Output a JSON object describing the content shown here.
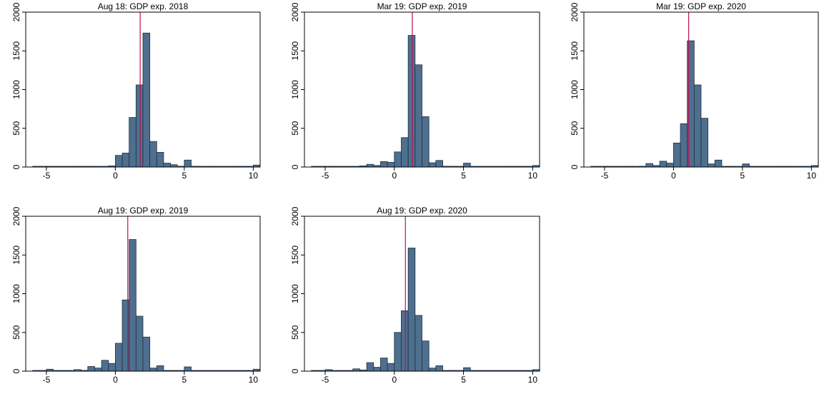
{
  "chart_data": [
    {
      "type": "bar",
      "title": "Aug 18: GDP exp. 2018",
      "xlim": [
        -6.5,
        10.5
      ],
      "ylim": [
        0,
        2000
      ],
      "xticks": [
        "-5",
        "0",
        "5",
        "10"
      ],
      "yticks": [
        "0",
        "500",
        "1000",
        "1500",
        "2000"
      ],
      "bin_width": 0.5,
      "reference_line_x": 1.8,
      "bins": [
        [
          -6,
          3
        ],
        [
          -5.5,
          0
        ],
        [
          -5,
          5
        ],
        [
          -4.5,
          0
        ],
        [
          -4,
          2
        ],
        [
          -3.5,
          2
        ],
        [
          -3,
          3
        ],
        [
          -2.5,
          2
        ],
        [
          -2,
          5
        ],
        [
          -1.5,
          3
        ],
        [
          -1,
          8
        ],
        [
          -0.5,
          15
        ],
        [
          0,
          150
        ],
        [
          0.5,
          180
        ],
        [
          1,
          640
        ],
        [
          1.5,
          1060
        ],
        [
          2,
          1730
        ],
        [
          2.5,
          330
        ],
        [
          3,
          190
        ],
        [
          3.5,
          50
        ],
        [
          4,
          30
        ],
        [
          4.5,
          10
        ],
        [
          5,
          90
        ],
        [
          5.5,
          10
        ],
        [
          6,
          5
        ],
        [
          6.5,
          3
        ],
        [
          7,
          3
        ],
        [
          7.5,
          2
        ],
        [
          8,
          3
        ],
        [
          8.5,
          2
        ],
        [
          9,
          3
        ],
        [
          9.5,
          2
        ],
        [
          10,
          25
        ]
      ]
    },
    {
      "type": "bar",
      "title": "Mar 19: GDP exp. 2019",
      "xlim": [
        -6.5,
        10.5
      ],
      "ylim": [
        0,
        2000
      ],
      "xticks": [
        "-5",
        "0",
        "5",
        "10"
      ],
      "yticks": [
        "0",
        "500",
        "1000",
        "1500",
        "2000"
      ],
      "bin_width": 0.5,
      "reference_line_x": 1.3,
      "bins": [
        [
          -6,
          3
        ],
        [
          -5.5,
          0
        ],
        [
          -5,
          5
        ],
        [
          -4.5,
          0
        ],
        [
          -4,
          3
        ],
        [
          -3.5,
          3
        ],
        [
          -3,
          8
        ],
        [
          -2.5,
          15
        ],
        [
          -2,
          35
        ],
        [
          -1.5,
          20
        ],
        [
          -1,
          70
        ],
        [
          -0.5,
          60
        ],
        [
          0,
          195
        ],
        [
          0.5,
          380
        ],
        [
          1,
          1700
        ],
        [
          1.5,
          1320
        ],
        [
          2,
          650
        ],
        [
          2.5,
          55
        ],
        [
          3,
          85
        ],
        [
          3.5,
          10
        ],
        [
          4,
          8
        ],
        [
          4.5,
          5
        ],
        [
          5,
          50
        ],
        [
          5.5,
          8
        ],
        [
          6,
          5
        ],
        [
          6.5,
          3
        ],
        [
          7,
          3
        ],
        [
          7.5,
          2
        ],
        [
          8,
          3
        ],
        [
          8.5,
          2
        ],
        [
          9,
          3
        ],
        [
          9.5,
          2
        ],
        [
          10,
          20
        ]
      ]
    },
    {
      "type": "bar",
      "title": "Mar 19: GDP exp. 2020",
      "xlim": [
        -6.5,
        10.5
      ],
      "ylim": [
        0,
        2000
      ],
      "xticks": [
        "-5",
        "0",
        "5",
        "10"
      ],
      "yticks": [
        "0",
        "500",
        "1000",
        "1500",
        "2000"
      ],
      "bin_width": 0.5,
      "reference_line_x": 1.1,
      "bins": [
        [
          -6,
          3
        ],
        [
          -5.5,
          0
        ],
        [
          -5,
          5
        ],
        [
          -4.5,
          0
        ],
        [
          -4,
          3
        ],
        [
          -3.5,
          3
        ],
        [
          -3,
          5
        ],
        [
          -2.5,
          10
        ],
        [
          -2,
          45
        ],
        [
          -1.5,
          20
        ],
        [
          -1,
          75
        ],
        [
          -0.5,
          50
        ],
        [
          0,
          310
        ],
        [
          0.5,
          560
        ],
        [
          1,
          1630
        ],
        [
          1.5,
          1060
        ],
        [
          2,
          630
        ],
        [
          2.5,
          40
        ],
        [
          3,
          90
        ],
        [
          3.5,
          8
        ],
        [
          4,
          8
        ],
        [
          4.5,
          5
        ],
        [
          5,
          40
        ],
        [
          5.5,
          8
        ],
        [
          6,
          5
        ],
        [
          6.5,
          3
        ],
        [
          7,
          3
        ],
        [
          7.5,
          2
        ],
        [
          8,
          3
        ],
        [
          8.5,
          2
        ],
        [
          9,
          3
        ],
        [
          9.5,
          2
        ],
        [
          10,
          20
        ]
      ]
    },
    {
      "type": "bar",
      "title": "Aug 19: GDP exp. 2019",
      "xlim": [
        -6.5,
        10.5
      ],
      "ylim": [
        0,
        2000
      ],
      "xticks": [
        "-5",
        "0",
        "5",
        "10"
      ],
      "yticks": [
        "0",
        "500",
        "1000",
        "1500",
        "2000"
      ],
      "bin_width": 0.5,
      "reference_line_x": 0.9,
      "bins": [
        [
          -6,
          3
        ],
        [
          -5.5,
          0
        ],
        [
          -5,
          25
        ],
        [
          -4.5,
          0
        ],
        [
          -4,
          5
        ],
        [
          -3.5,
          5
        ],
        [
          -3,
          20
        ],
        [
          -2.5,
          10
        ],
        [
          -2,
          60
        ],
        [
          -1.5,
          40
        ],
        [
          -1,
          140
        ],
        [
          -0.5,
          100
        ],
        [
          0,
          360
        ],
        [
          0.5,
          920
        ],
        [
          1,
          1700
        ],
        [
          1.5,
          710
        ],
        [
          2,
          440
        ],
        [
          2.5,
          40
        ],
        [
          3,
          70
        ],
        [
          3.5,
          8
        ],
        [
          4,
          8
        ],
        [
          4.5,
          5
        ],
        [
          5,
          55
        ],
        [
          5.5,
          8
        ],
        [
          6,
          5
        ],
        [
          6.5,
          3
        ],
        [
          7,
          3
        ],
        [
          7.5,
          2
        ],
        [
          8,
          3
        ],
        [
          8.5,
          2
        ],
        [
          9,
          3
        ],
        [
          9.5,
          2
        ],
        [
          10,
          25
        ]
      ]
    },
    {
      "type": "bar",
      "title": "Aug 19: GDP exp. 2020",
      "xlim": [
        -6.5,
        10.5
      ],
      "ylim": [
        0,
        2000
      ],
      "xticks": [
        "-5",
        "0",
        "5",
        "10"
      ],
      "yticks": [
        "0",
        "500",
        "1000",
        "1500",
        "2000"
      ],
      "bin_width": 0.5,
      "reference_line_x": 0.8,
      "bins": [
        [
          -6,
          3
        ],
        [
          -5.5,
          0
        ],
        [
          -5,
          20
        ],
        [
          -4.5,
          0
        ],
        [
          -4,
          5
        ],
        [
          -3.5,
          5
        ],
        [
          -3,
          30
        ],
        [
          -2.5,
          15
        ],
        [
          -2,
          110
        ],
        [
          -1.5,
          50
        ],
        [
          -1,
          170
        ],
        [
          -0.5,
          100
        ],
        [
          0,
          500
        ],
        [
          0.5,
          780
        ],
        [
          1,
          1590
        ],
        [
          1.5,
          720
        ],
        [
          2,
          390
        ],
        [
          2.5,
          40
        ],
        [
          3,
          70
        ],
        [
          3.5,
          8
        ],
        [
          4,
          10
        ],
        [
          4.5,
          5
        ],
        [
          5,
          45
        ],
        [
          5.5,
          8
        ],
        [
          6,
          5
        ],
        [
          6.5,
          3
        ],
        [
          7,
          3
        ],
        [
          7.5,
          2
        ],
        [
          8,
          3
        ],
        [
          8.5,
          2
        ],
        [
          9,
          3
        ],
        [
          9.5,
          2
        ],
        [
          10,
          20
        ]
      ]
    }
  ],
  "colors": {
    "bar_fill": "#4f6f8f",
    "bar_stroke": "#1f2f3f",
    "reference_line": "#c0104a",
    "axis": "#000000"
  }
}
